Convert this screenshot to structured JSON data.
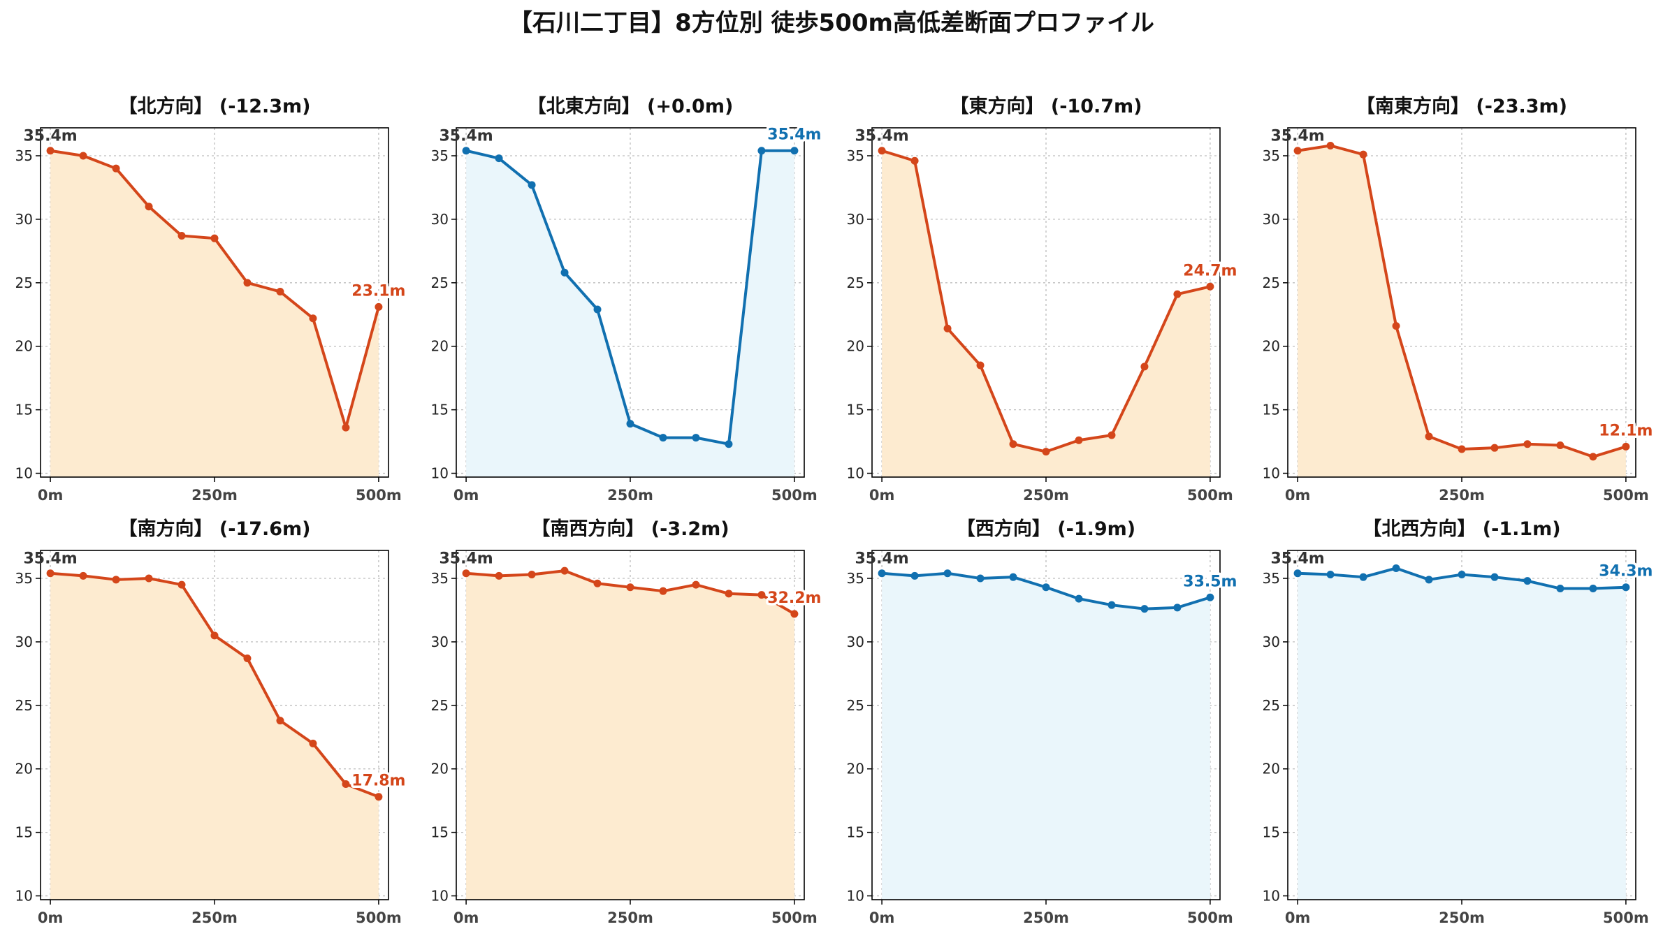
{
  "chart_data": {
    "type": "line",
    "title": "【石川二丁目】8方位別 徒歩500m高低差断面プロファイル",
    "colors": {
      "down": "#d4461a",
      "up": "#1170b0",
      "down_fill": "#fdebd0",
      "up_fill": "#eaf6fb"
    },
    "x": [
      0,
      50,
      100,
      150,
      200,
      250,
      300,
      350,
      400,
      450,
      500
    ],
    "x_ticks": [
      0,
      250,
      500
    ],
    "x_tick_labels": [
      "0m",
      "250m",
      "500m"
    ],
    "xlim": [
      -15,
      515
    ],
    "ylim": [
      9.7,
      37.2
    ],
    "y_ticks": [
      10,
      15,
      20,
      25,
      30,
      35
    ],
    "y_tick_labels": [
      "10",
      "15",
      "20",
      "25",
      "30",
      "35"
    ],
    "grid": true,
    "panels": [
      {
        "title": "【北方向】 (-12.3m)",
        "trend": "down",
        "start_label": "35.4m",
        "end_label": "23.1m",
        "values": [
          35.4,
          35.0,
          34.0,
          31.0,
          28.7,
          28.5,
          25.0,
          24.3,
          22.2,
          13.6,
          23.1
        ]
      },
      {
        "title": "【北東方向】 (+0.0m)",
        "trend": "up",
        "start_label": "35.4m",
        "end_label": "35.4m",
        "values": [
          35.4,
          34.8,
          32.7,
          25.8,
          22.9,
          13.9,
          12.8,
          12.8,
          12.3,
          35.4,
          35.4
        ]
      },
      {
        "title": "【東方向】 (-10.7m)",
        "trend": "down",
        "start_label": "35.4m",
        "end_label": "24.7m",
        "values": [
          35.4,
          34.6,
          21.4,
          18.5,
          12.3,
          11.7,
          12.6,
          13.0,
          18.4,
          24.1,
          24.7
        ]
      },
      {
        "title": "【南東方向】 (-23.3m)",
        "trend": "down",
        "start_label": "35.4m",
        "end_label": "12.1m",
        "values": [
          35.4,
          35.8,
          35.1,
          21.6,
          12.9,
          11.9,
          12.0,
          12.3,
          12.2,
          11.3,
          12.1
        ]
      },
      {
        "title": "【南方向】 (-17.6m)",
        "trend": "down",
        "start_label": "35.4m",
        "end_label": "17.8m",
        "values": [
          35.4,
          35.2,
          34.9,
          35.0,
          34.5,
          30.5,
          28.7,
          23.8,
          22.0,
          18.8,
          17.8
        ]
      },
      {
        "title": "【南西方向】 (-3.2m)",
        "trend": "down",
        "start_label": "35.4m",
        "end_label": "32.2m",
        "values": [
          35.4,
          35.2,
          35.3,
          35.6,
          34.6,
          34.3,
          34.0,
          34.5,
          33.8,
          33.7,
          32.2
        ]
      },
      {
        "title": "【西方向】 (-1.9m)",
        "trend": "up",
        "start_label": "35.4m",
        "end_label": "33.5m",
        "values": [
          35.4,
          35.2,
          35.4,
          35.0,
          35.1,
          34.3,
          33.4,
          32.9,
          32.6,
          32.7,
          33.5
        ]
      },
      {
        "title": "【北西方向】 (-1.1m)",
        "trend": "up",
        "start_label": "35.4m",
        "end_label": "34.3m",
        "values": [
          35.4,
          35.3,
          35.1,
          35.8,
          34.9,
          35.3,
          35.1,
          34.8,
          34.2,
          34.2,
          34.3
        ]
      }
    ]
  }
}
